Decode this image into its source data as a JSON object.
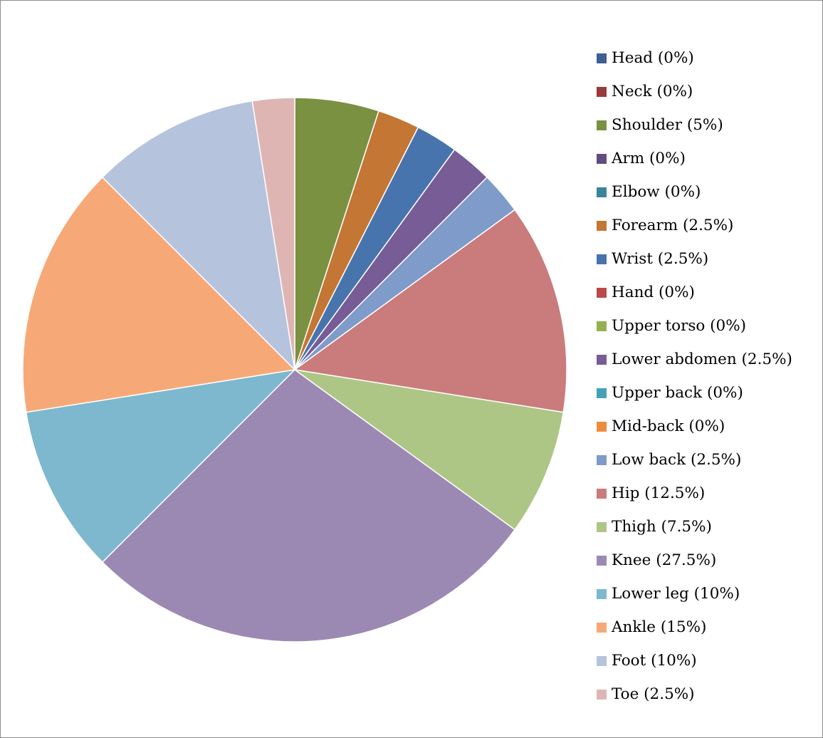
{
  "chart_data": {
    "type": "pie",
    "title": "",
    "legend_position": "right",
    "start_angle": "12 o'clock",
    "direction": "clockwise",
    "slices": [
      {
        "label": "Head (0%)",
        "value": 0,
        "color": "#3e5f92"
      },
      {
        "label": "Neck (0%)",
        "value": 0,
        "color": "#983b3a"
      },
      {
        "label": "Shoulder (5%)",
        "value": 5,
        "color": "#7a9142"
      },
      {
        "label": "Arm (0%)",
        "value": 0,
        "color": "#604c7f"
      },
      {
        "label": "Elbow (0%)",
        "value": 0,
        "color": "#3a8599"
      },
      {
        "label": "Forearm (2.5%)",
        "value": 2.5,
        "color": "#c47634"
      },
      {
        "label": "Wrist (2.5%)",
        "value": 2.5,
        "color": "#4874ae"
      },
      {
        "label": "Hand (0%)",
        "value": 0,
        "color": "#b94a48"
      },
      {
        "label": "Upper torso (0%)",
        "value": 0,
        "color": "#93b24e"
      },
      {
        "label": "Lower abdomen (2.5%)",
        "value": 2.5,
        "color": "#775c96"
      },
      {
        "label": "Upper back (0%)",
        "value": 0,
        "color": "#44a1b8"
      },
      {
        "label": "Mid-back (0%)",
        "value": 0,
        "color": "#ec8c3f"
      },
      {
        "label": "Low back (2.5%)",
        "value": 2.5,
        "color": "#7f9bc9"
      },
      {
        "label": "Hip (12.5%)",
        "value": 12.5,
        "color": "#c97c7b"
      },
      {
        "label": "Thigh (7.5%)",
        "value": 7.5,
        "color": "#adc685"
      },
      {
        "label": "Knee (27.5%)",
        "value": 27.5,
        "color": "#9b89b3"
      },
      {
        "label": "Lower leg (10%)",
        "value": 10,
        "color": "#7db8ce"
      },
      {
        "label": "Ankle (15%)",
        "value": 15,
        "color": "#f6a977"
      },
      {
        "label": "Foot (10%)",
        "value": 10,
        "color": "#b5c3dd"
      },
      {
        "label": "Toe (2.5%)",
        "value": 2.5,
        "color": "#dfb5b4"
      }
    ]
  }
}
